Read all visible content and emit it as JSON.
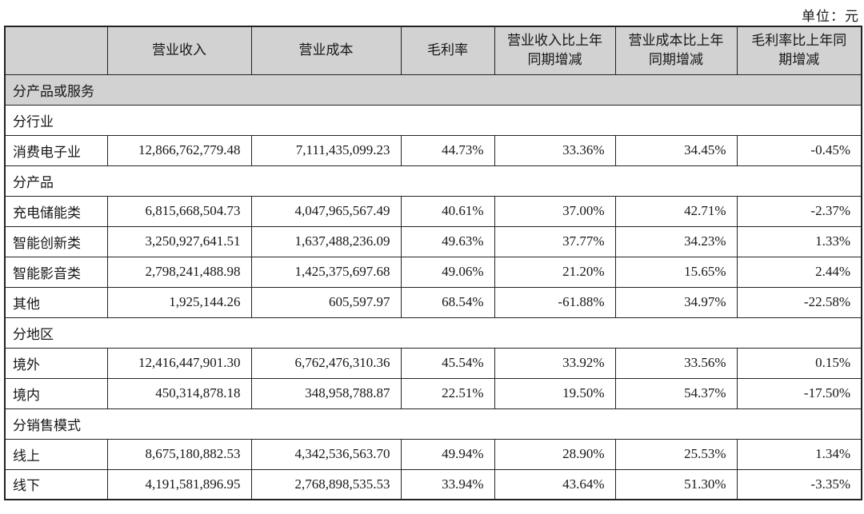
{
  "page": {
    "unit_label": "单位：元"
  },
  "colors": {
    "header_bg": "#d2d2d2",
    "border": "#222222",
    "text": "#161616"
  },
  "table": {
    "columns": [
      "",
      "营业收入",
      "营业成本",
      "毛利率",
      "营业收入比上年同期增减",
      "营业成本比上年同期增减",
      "毛利率比上年同期增减"
    ],
    "group_row_label": "分产品或服务",
    "sections": [
      {
        "title": "分行业",
        "rows": [
          {
            "label": "消费电子业",
            "values": [
              "12,866,762,779.48",
              "7,111,435,099.23",
              "44.73%",
              "33.36%",
              "34.45%",
              "-0.45%"
            ]
          }
        ]
      },
      {
        "title": "分产品",
        "rows": [
          {
            "label": "充电储能类",
            "values": [
              "6,815,668,504.73",
              "4,047,965,567.49",
              "40.61%",
              "37.00%",
              "42.71%",
              "-2.37%"
            ]
          },
          {
            "label": "智能创新类",
            "values": [
              "3,250,927,641.51",
              "1,637,488,236.09",
              "49.63%",
              "37.77%",
              "34.23%",
              "1.33%"
            ]
          },
          {
            "label": "智能影音类",
            "values": [
              "2,798,241,488.98",
              "1,425,375,697.68",
              "49.06%",
              "21.20%",
              "15.65%",
              "2.44%"
            ]
          },
          {
            "label": "其他",
            "values": [
              "1,925,144.26",
              "605,597.97",
              "68.54%",
              "-61.88%",
              "34.97%",
              "-22.58%"
            ]
          }
        ]
      },
      {
        "title": "分地区",
        "rows": [
          {
            "label": "境外",
            "values": [
              "12,416,447,901.30",
              "6,762,476,310.36",
              "45.54%",
              "33.92%",
              "33.56%",
              "0.15%"
            ]
          },
          {
            "label": "境内",
            "values": [
              "450,314,878.18",
              "348,958,788.87",
              "22.51%",
              "19.50%",
              "54.37%",
              "-17.50%"
            ]
          }
        ]
      },
      {
        "title": "分销售模式",
        "rows": [
          {
            "label": "线上",
            "values": [
              "8,675,180,882.53",
              "4,342,536,563.70",
              "49.94%",
              "28.90%",
              "25.53%",
              "1.34%"
            ]
          },
          {
            "label": "线下",
            "values": [
              "4,191,581,896.95",
              "2,768,898,535.53",
              "33.94%",
              "43.64%",
              "51.30%",
              "-3.35%"
            ]
          }
        ]
      }
    ]
  }
}
